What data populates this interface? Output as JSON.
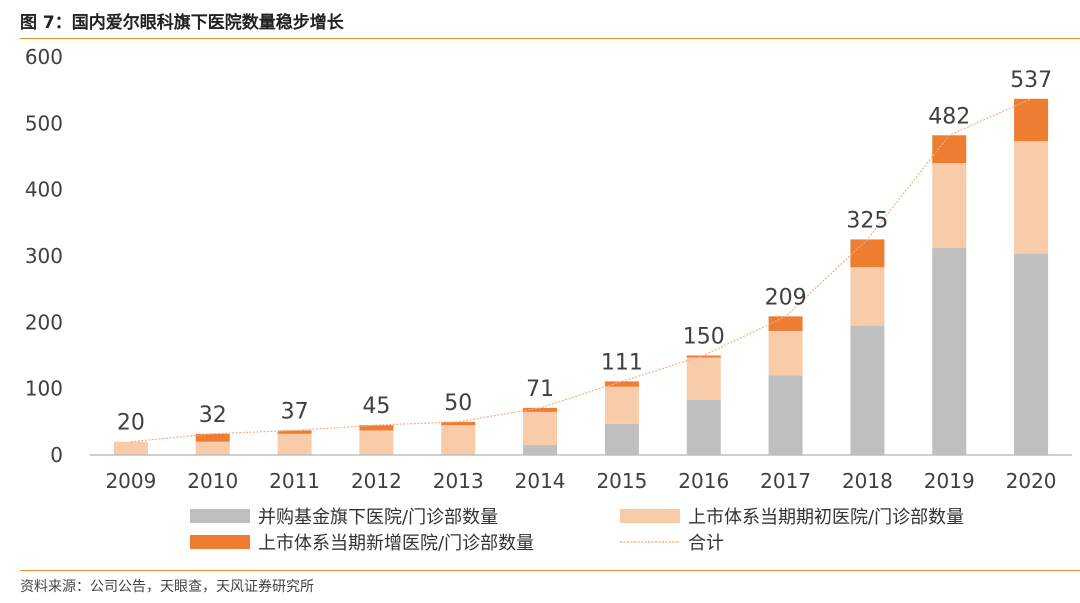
{
  "figure": {
    "title": "图 7：国内爱尔眼科旗下医院数量稳步增长",
    "source": "资料来源：公司公告，天眼查，天风证券研究所"
  },
  "colors": {
    "series1": "#bfbfbf",
    "series2": "#f8cba9",
    "series3": "#ed7d31",
    "total_line": "#f4b183",
    "rule": "#e5902f"
  },
  "chart_data": {
    "type": "bar",
    "stacked": true,
    "categories": [
      "2009",
      "2010",
      "2011",
      "2012",
      "2013",
      "2014",
      "2015",
      "2016",
      "2017",
      "2018",
      "2019",
      "2020"
    ],
    "series": [
      {
        "name": "并购基金旗下医院/门诊部数量",
        "values": [
          0,
          0,
          0,
          0,
          0,
          15,
          47,
          83,
          120,
          195,
          312,
          303
        ]
      },
      {
        "name": "上市体系当期期初医院/门诊部数量",
        "values": [
          20,
          20,
          32,
          37,
          45,
          50,
          56,
          64,
          67,
          88,
          128,
          170
        ]
      },
      {
        "name": "上市体系当期新增医院/门诊部数量",
        "values": [
          0,
          12,
          5,
          8,
          5,
          6,
          8,
          3,
          22,
          42,
          42,
          64
        ]
      }
    ],
    "total": {
      "name": "合计",
      "values": [
        20,
        32,
        37,
        45,
        50,
        71,
        111,
        150,
        209,
        325,
        482,
        537
      ]
    },
    "ylim": [
      0,
      600
    ],
    "yticks": [
      "0",
      "100",
      "200",
      "300",
      "400",
      "500",
      "600"
    ],
    "xlabel": "",
    "ylabel": "",
    "legend_position": "bottom",
    "grid": false
  }
}
